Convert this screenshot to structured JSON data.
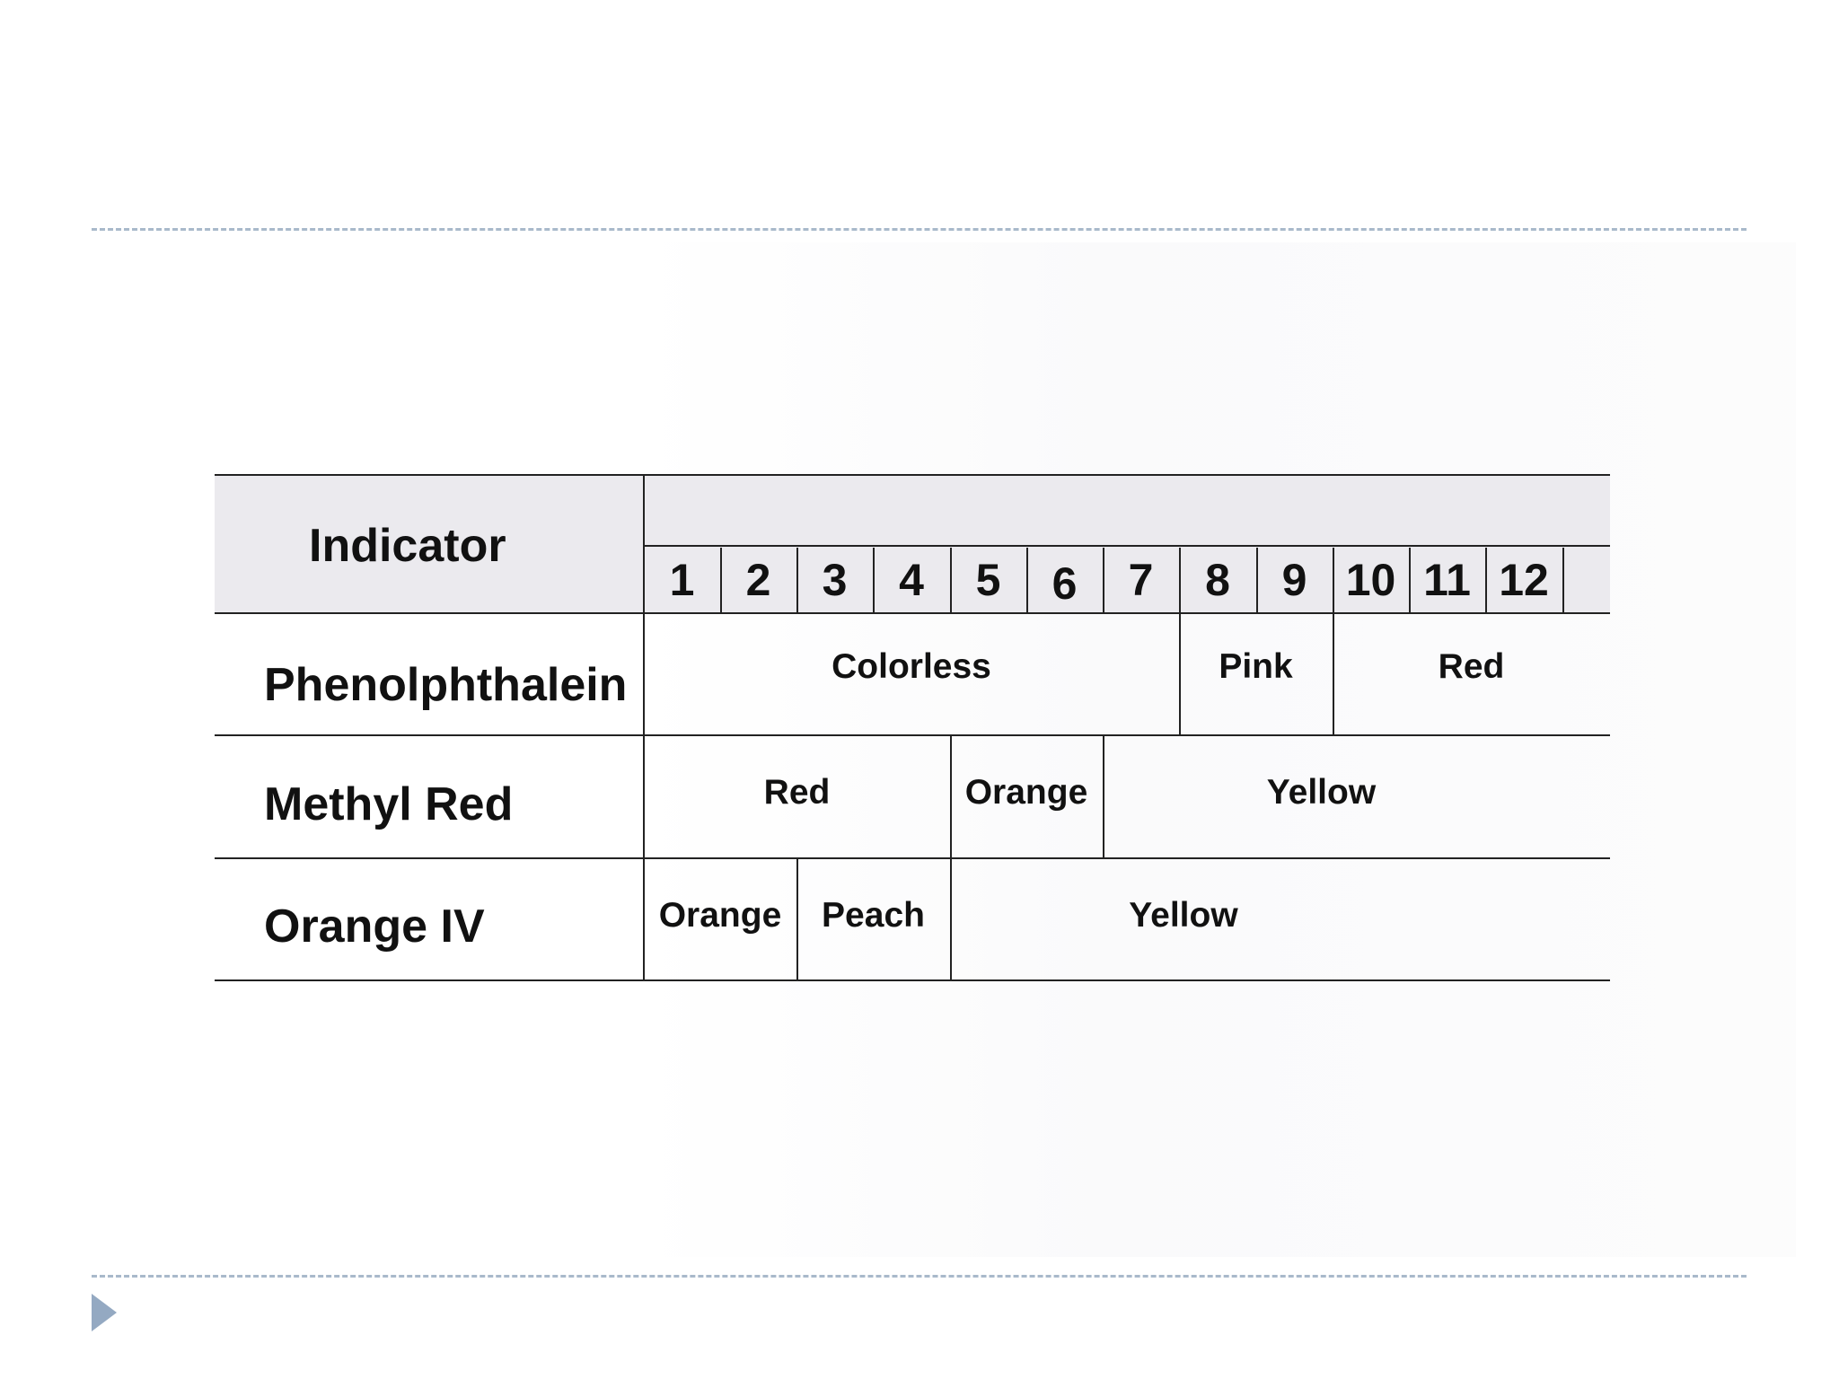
{
  "header": {
    "indicator_label": "Indicator",
    "ph_values": [
      "1",
      "2",
      "3",
      "4",
      "5",
      "6",
      "7",
      "8",
      "9",
      "10",
      "11",
      "12"
    ]
  },
  "rows": [
    {
      "name": "Phenolphthalein",
      "segments": [
        {
          "label": "Colorless",
          "from_ph": 1,
          "to_ph": 7
        },
        {
          "label": "Pink",
          "from_ph": 8,
          "to_ph": 9
        },
        {
          "label": "Red",
          "from_ph": 10,
          "to_ph": 12
        }
      ]
    },
    {
      "name": "Methyl Red",
      "segments": [
        {
          "label": "Red",
          "from_ph": 1,
          "to_ph": 4
        },
        {
          "label": "Orange",
          "from_ph": 5,
          "to_ph": 6
        },
        {
          "label": "Yellow",
          "from_ph": 7,
          "to_ph": 12
        }
      ]
    },
    {
      "name": "Orange IV",
      "segments": [
        {
          "label": "Orange",
          "from_ph": 1,
          "to_ph": 2
        },
        {
          "label": "Peach",
          "from_ph": 3,
          "to_ph": 4
        },
        {
          "label": "Yellow",
          "from_ph": 5,
          "to_ph": 12
        }
      ]
    }
  ],
  "colors": {
    "header_fill": "#ebeaee",
    "divider": "#a9b9cb",
    "nav_arrow": "#94a9c2"
  },
  "icons": {
    "next_slide": "triangle-right-icon"
  }
}
